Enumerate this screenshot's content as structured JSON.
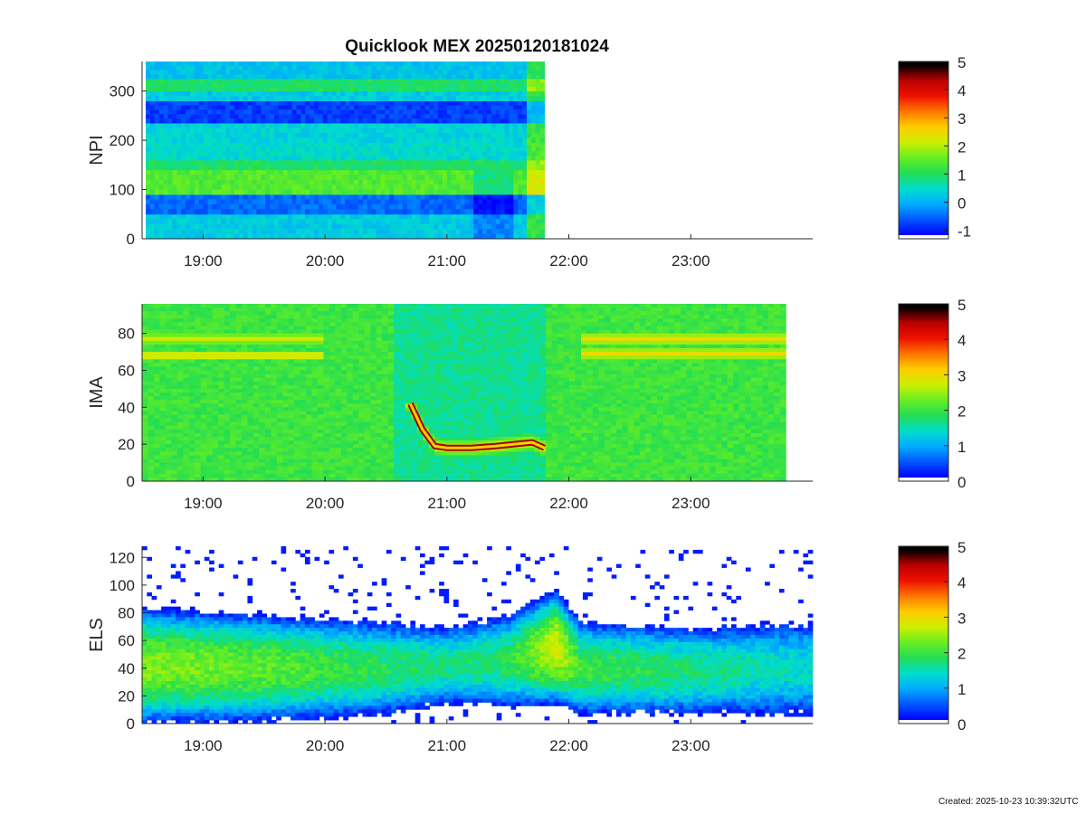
{
  "title": "Quicklook MEX 20250120181024",
  "footer": "Created: 2025-10-23 10:39:32UTC",
  "colors": {
    "colormap": [
      "#0000ff",
      "#0055ff",
      "#00aaff",
      "#00ddcc",
      "#22dd55",
      "#66ee22",
      "#ccee00",
      "#ffcc00",
      "#ff7700",
      "#ee1100",
      "#bb0000",
      "#000000"
    ],
    "axis": "#262626"
  },
  "chart_data": [
    {
      "type": "heatmap",
      "panel": "NPI",
      "ylabel": "NPI",
      "ylim": [
        0,
        360
      ],
      "yticks": [
        0,
        100,
        200,
        300
      ],
      "ytick_labels": [
        "0",
        "100",
        "200",
        "300"
      ],
      "xlim_hours": [
        18.5,
        24.0
      ],
      "xticks_hours": [
        19,
        20,
        21,
        22,
        23
      ],
      "xtick_labels": [
        "19:00",
        "20:00",
        "21:00",
        "22:00",
        "23:00"
      ],
      "data_hours": [
        18.53,
        21.8
      ],
      "colorbar": {
        "range": [
          -1.3,
          5
        ],
        "ticks": [
          -1,
          0,
          1,
          2,
          3,
          4,
          5
        ],
        "tick_labels": [
          "-1",
          "0",
          "1",
          "2",
          "3",
          "4",
          "5"
        ]
      },
      "bands": [
        {
          "y": [
            0,
            50
          ],
          "level": 0.2
        },
        {
          "y": [
            50,
            90
          ],
          "level": -0.6
        },
        {
          "y": [
            90,
            140
          ],
          "level": 1.4
        },
        {
          "y": [
            140,
            160
          ],
          "level": 0.9
        },
        {
          "y": [
            160,
            195
          ],
          "level": 0.4
        },
        {
          "y": [
            195,
            235
          ],
          "level": 0.3
        },
        {
          "y": [
            235,
            280
          ],
          "level": -0.9
        },
        {
          "y": [
            280,
            300
          ],
          "level": 0.2
        },
        {
          "y": [
            300,
            325
          ],
          "level": 0.9
        },
        {
          "y": [
            325,
            360
          ],
          "level": 0.1
        }
      ]
    },
    {
      "type": "heatmap",
      "panel": "IMA",
      "ylabel": "IMA",
      "ylim": [
        0,
        96
      ],
      "yticks": [
        0,
        20,
        40,
        60,
        80
      ],
      "ytick_labels": [
        "0",
        "20",
        "40",
        "60",
        "80"
      ],
      "xlim_hours": [
        18.5,
        24.0
      ],
      "xticks_hours": [
        19,
        20,
        21,
        22,
        23
      ],
      "xtick_labels": [
        "19:00",
        "20:00",
        "21:00",
        "22:00",
        "23:00"
      ],
      "data_hours": [
        18.5,
        23.78
      ],
      "colorbar": {
        "range": [
          0,
          5
        ],
        "ticks": [
          0,
          1,
          2,
          3,
          4,
          5
        ],
        "tick_labels": [
          "0",
          "1",
          "2",
          "3",
          "4",
          "5"
        ]
      },
      "background_level": 2.0,
      "low_interval_hours": [
        20.55,
        21.82
      ],
      "low_level": 1.6,
      "ion_line": [
        {
          "h": 20.7,
          "y": 42
        },
        {
          "h": 20.8,
          "y": 28
        },
        {
          "h": 20.9,
          "y": 19
        },
        {
          "h": 21.0,
          "y": 18
        },
        {
          "h": 21.2,
          "y": 18
        },
        {
          "h": 21.4,
          "y": 19
        },
        {
          "h": 21.55,
          "y": 20
        },
        {
          "h": 21.7,
          "y": 21
        },
        {
          "h": 21.8,
          "y": 18
        }
      ],
      "upper_bands_early": [
        {
          "y": 68,
          "level": 3.0
        },
        {
          "y": 77,
          "level": 2.8
        }
      ],
      "upper_bands_late": [
        {
          "y": 69,
          "level": 3.0
        },
        {
          "y": 77,
          "level": 3.0
        }
      ]
    },
    {
      "type": "heatmap",
      "panel": "ELS",
      "ylabel": "ELS",
      "ylim": [
        0,
        128
      ],
      "yticks": [
        0,
        20,
        40,
        60,
        80,
        100,
        120
      ],
      "ytick_labels": [
        "0",
        "20",
        "40",
        "60",
        "80",
        "100",
        "120"
      ],
      "xlim_hours": [
        18.5,
        24.0
      ],
      "xticks_hours": [
        19,
        20,
        21,
        22,
        23
      ],
      "xtick_labels": [
        "19:00",
        "20:00",
        "21:00",
        "22:00",
        "23:00"
      ],
      "data_hours": [
        18.5,
        24.0
      ],
      "colorbar": {
        "range": [
          0,
          5
        ],
        "ticks": [
          0,
          1,
          2,
          3,
          4,
          5
        ],
        "tick_labels": [
          "0",
          "1",
          "2",
          "3",
          "4",
          "5"
        ]
      },
      "core_center": [
        {
          "h": 18.5,
          "y": 42
        },
        {
          "h": 19.5,
          "y": 40
        },
        {
          "h": 20.5,
          "y": 40
        },
        {
          "h": 21.0,
          "y": 42
        },
        {
          "h": 21.5,
          "y": 45
        },
        {
          "h": 21.9,
          "y": 55
        },
        {
          "h": 22.1,
          "y": 40
        },
        {
          "h": 23.0,
          "y": 38
        },
        {
          "h": 24.0,
          "y": 40
        }
      ],
      "core_peak_level": [
        {
          "h": 18.5,
          "y": 2.4
        },
        {
          "h": 19.5,
          "y": 2.2
        },
        {
          "h": 20.5,
          "y": 1.8
        },
        {
          "h": 21.0,
          "y": 1.6
        },
        {
          "h": 21.5,
          "y": 1.8
        },
        {
          "h": 21.9,
          "y": 2.8
        },
        {
          "h": 22.1,
          "y": 2.0
        },
        {
          "h": 23.0,
          "y": 1.7
        },
        {
          "h": 24.0,
          "y": 1.3
        }
      ],
      "core_halfwidth": [
        {
          "h": 18.5,
          "y": 38
        },
        {
          "h": 19.5,
          "y": 35
        },
        {
          "h": 20.5,
          "y": 30
        },
        {
          "h": 21.0,
          "y": 25
        },
        {
          "h": 21.5,
          "y": 30
        },
        {
          "h": 21.9,
          "y": 38
        },
        {
          "h": 22.1,
          "y": 30
        },
        {
          "h": 23.0,
          "y": 28
        },
        {
          "h": 24.0,
          "y": 30
        }
      ],
      "noise_upper_y": [
        85,
        128
      ],
      "noise_lower_y": [
        0,
        8
      ]
    }
  ]
}
